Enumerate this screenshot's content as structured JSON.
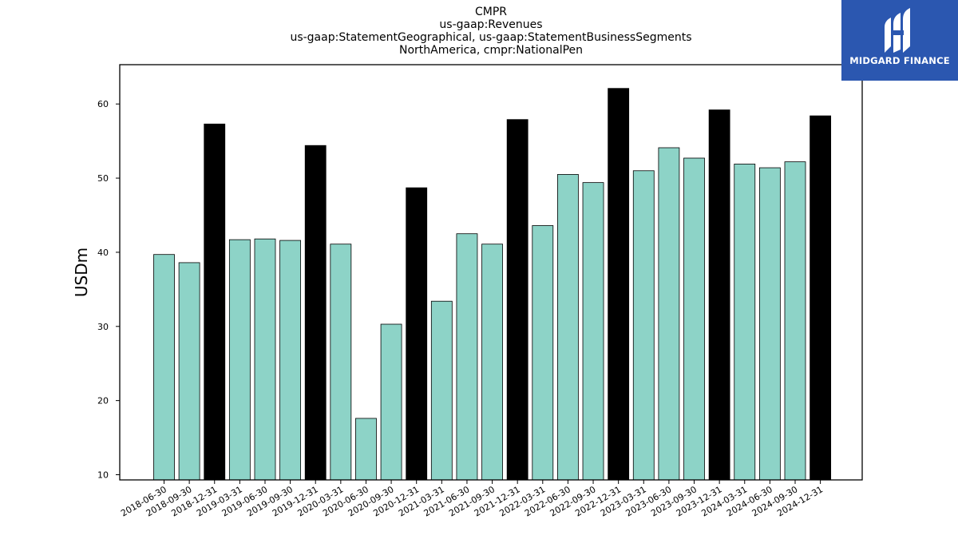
{
  "title_lines": [
    "CMPR",
    "us-gaap:Revenues",
    "us-gaap:StatementGeographical, us-gaap:StatementBusinessSegments",
    "NorthAmerica, cmpr:NationalPen"
  ],
  "logo": {
    "text": "MIDGARD FINANCE",
    "background": "#2b57b0"
  },
  "colors": {
    "bar_default": "#8dd3c7",
    "bar_year_end": "#000000",
    "edge": "#000000"
  },
  "chart_data": {
    "type": "bar",
    "title": "CMPR",
    "ylabel": "USDm",
    "xlabel": "",
    "ylim": [
      9.3,
      65.3
    ],
    "yticks": [
      10,
      20,
      30,
      40,
      50,
      60
    ],
    "grid": false,
    "categories": [
      "2018-06-30",
      "2018-09-30",
      "2018-12-31",
      "2019-03-31",
      "2019-06-30",
      "2019-09-30",
      "2019-12-31",
      "2020-03-31",
      "2020-06-30",
      "2020-09-30",
      "2020-12-31",
      "2021-03-31",
      "2021-06-30",
      "2021-09-30",
      "2021-12-31",
      "2022-03-31",
      "2022-06-30",
      "2022-09-30",
      "2022-12-31",
      "2023-03-31",
      "2023-06-30",
      "2023-09-30",
      "2023-12-31",
      "2024-03-31",
      "2024-06-30",
      "2024-09-30",
      "2024-12-31"
    ],
    "values": [
      39.7,
      38.6,
      57.3,
      41.7,
      41.8,
      41.6,
      54.4,
      41.1,
      17.6,
      30.3,
      48.7,
      33.4,
      42.5,
      41.1,
      57.9,
      43.6,
      50.5,
      49.4,
      62.1,
      51.0,
      54.1,
      52.7,
      59.2,
      51.9,
      51.4,
      52.2,
      58.4
    ]
  }
}
